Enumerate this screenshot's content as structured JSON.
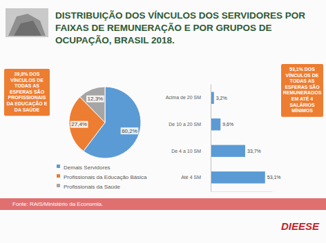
{
  "title": "DISTRIBUIÇÃO DOS VÍNCULOS DOS SERVIDORES POR FAIXAS DE REMUNERAÇÃO E POR GRUPOS DE OCUPAÇÃO, BRASIL 2018.",
  "chart_data": [
    {
      "type": "pie",
      "annotation": "39,8% DOS VÍNCULOS DE TODAS AS ESFERAS SÃO PROFISSIONAIS DA EDUCAÇÃO E DA SAÚDE",
      "categories": [
        "Demais Servidores",
        "Profissionais da Educação Básica",
        "Profissionais da Saúde"
      ],
      "values": [
        60.2,
        27.4,
        12.3
      ],
      "value_labels": [
        "60,2%",
        "27,4%",
        "12,3%"
      ],
      "colors": [
        "#5b9bd5",
        "#ed7d31",
        "#a5a5a5"
      ],
      "data_labels": true,
      "legend": "bottom"
    },
    {
      "type": "bar",
      "orientation": "horizontal",
      "annotation": "53,1% DOS VÍNCULOS DE TODAS AS ESFERAS SÃO REMUNERADOS EM ATÉ 4 SALÁRIOS MÍNIMOS",
      "categories": [
        "Acima de 20 SM",
        "De 10 a 20 SM",
        "De 4 a 10 SM",
        "Até 4 SM"
      ],
      "values": [
        3.2,
        9.6,
        33.7,
        53.1
      ],
      "value_labels": [
        "3,2%",
        "9,6%",
        "33,7%",
        "53,1%"
      ],
      "color": "#5b9bd5",
      "xlim": [
        0,
        60
      ],
      "data_labels": true,
      "tick_labels": "y"
    }
  ],
  "source": "Fonte: RAIS/Ministério da Economia.",
  "logo": "DIEESE"
}
